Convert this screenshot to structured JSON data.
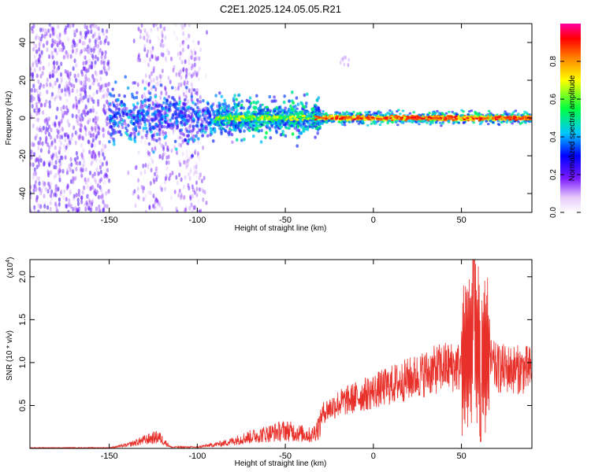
{
  "title": "C2E1.2025.124.05.05.R21",
  "chart_data": [
    {
      "type": "heatmap",
      "xlabel": "Height of straight line (km)",
      "ylabel": "Frequency (Hz)",
      "xlim": [
        -195,
        90
      ],
      "ylim": [
        -50,
        50
      ],
      "xticks": [
        -150,
        -100,
        -50,
        0,
        50
      ],
      "yticks": [
        -40,
        -20,
        0,
        20,
        40
      ],
      "colorbar": {
        "label": "Normalized spectral amplitude",
        "range": [
          0,
          1
        ],
        "ticks": [
          0.0,
          0.2,
          0.4,
          0.6,
          0.8
        ],
        "colormap": [
          "#ffffff",
          "#e6c8f8",
          "#7a1aff",
          "#0000ff",
          "#00c8ff",
          "#00ff40",
          "#ffff00",
          "#ff8000",
          "#ff0000",
          "#ff00a0"
        ]
      },
      "description_bands": [
        {
          "x": [
            -195,
            -150
          ],
          "spread_hz": 50,
          "amplitude": 0.2
        },
        {
          "x": [
            -150,
            -100
          ],
          "spread_hz": 8,
          "amplitude": 0.45
        },
        {
          "x": [
            -100,
            -30
          ],
          "spread_hz": 6,
          "amplitude": 0.5
        },
        {
          "x": [
            -30,
            90
          ],
          "spread_hz": 2,
          "amplitude": 0.85
        }
      ]
    },
    {
      "type": "line",
      "xlabel": "Height of straight line (km)",
      "ylabel": "SNR (10 * v/v)",
      "yscale_label_exp": "4",
      "xlim": [
        -195,
        90
      ],
      "ylim": [
        0,
        2.2
      ],
      "xticks": [
        -150,
        -100,
        -50,
        0,
        50
      ],
      "yticks": [
        0.5,
        1.0,
        1.5,
        2.0
      ],
      "series_color": "#e8302a",
      "envelope": [
        {
          "x": -195,
          "y": 0.01
        },
        {
          "x": -150,
          "y": 0.01
        },
        {
          "x": -140,
          "y": 0.05
        },
        {
          "x": -130,
          "y": 0.13
        },
        {
          "x": -122,
          "y": 0.18
        },
        {
          "x": -115,
          "y": 0.02
        },
        {
          "x": -100,
          "y": 0.02
        },
        {
          "x": -85,
          "y": 0.08
        },
        {
          "x": -70,
          "y": 0.18
        },
        {
          "x": -50,
          "y": 0.28
        },
        {
          "x": -35,
          "y": 0.2
        },
        {
          "x": -28,
          "y": 0.45
        },
        {
          "x": -20,
          "y": 0.55
        },
        {
          "x": 0,
          "y": 0.7
        },
        {
          "x": 20,
          "y": 0.85
        },
        {
          "x": 40,
          "y": 1.0
        },
        {
          "x": 50,
          "y": 1.0
        },
        {
          "x": 57,
          "y": 1.3
        },
        {
          "x": 62,
          "y": 1.1
        },
        {
          "x": 70,
          "y": 0.98
        },
        {
          "x": 90,
          "y": 0.96
        }
      ],
      "peak": {
        "x": 57,
        "y": 2.22
      },
      "trough": {
        "x": 61,
        "y": 0.08
      }
    }
  ]
}
